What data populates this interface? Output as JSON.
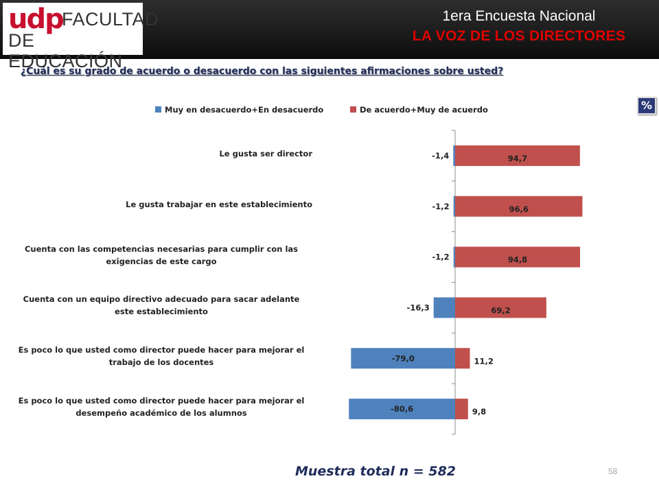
{
  "header": {
    "logo": {
      "brand": "udp",
      "line1": "FACULTAD",
      "line2": "DE EDUCACIÓN"
    },
    "title": "1era Encuesta Nacional",
    "subtitle": "LA VOZ DE LOS DIRECTORES"
  },
  "question": "¿Cuál es su grado de acuerdo o desacuerdo con las siguientes afirmaciones sobre usted?",
  "badge": "%",
  "footer": {
    "sample": "Muestra total n = 582",
    "page": "58"
  },
  "colors": {
    "disagree": "#4f81bd",
    "agree": "#c0504d",
    "header_bg": "#1c1c1c",
    "brand_red": "#c8102e"
  },
  "chart_data": {
    "type": "bar",
    "orientation": "horizontal",
    "stacked": "diverging",
    "legend_position": "top",
    "categories": [
      "Le gusta ser director",
      "Le gusta trabajar en este establecimiento",
      "Cuenta con las competencias necesarias para cumplir con las exigencias de este cargo",
      "Cuenta con un equipo directivo adecuado para sacar adelante este establecimiento",
      "Es poco lo que usted como director puede hacer para mejorar el trabajo de los docentes",
      "Es poco lo que usted como director puede hacer para mejorar el desempeño académico de los alumnos"
    ],
    "category_lines": [
      [
        "Le gusta ser director"
      ],
      [
        "Le gusta trabajar en este establecimiento"
      ],
      [
        "Cuenta con las competencias necesarias para cumplir con las",
        "exigencias de este cargo"
      ],
      [
        "Cuenta con un equipo directivo adecuado para sacar adelante",
        "este establecimiento"
      ],
      [
        "Es poco lo que usted como director puede hacer para mejorar el",
        "trabajo de los docentes"
      ],
      [
        "Es poco lo que usted como director puede hacer para mejorar el",
        "desempeño académico de los alumnos"
      ]
    ],
    "series": [
      {
        "name": "Muy en desacuerdo+En desacuerdo",
        "values": [
          -1.4,
          -1.2,
          -1.2,
          -16.3,
          -79.0,
          -80.6
        ],
        "labels": [
          "-1,4",
          "-1,2",
          "-1,2",
          "-16,3",
          "-79,0",
          "-80,6"
        ]
      },
      {
        "name": "De acuerdo+Muy de acuerdo",
        "values": [
          94.7,
          96.6,
          94.8,
          69.2,
          11.2,
          9.8
        ],
        "labels": [
          "94,7",
          "96,6",
          "94,8",
          "69,2",
          "11,2",
          "9,8"
        ]
      }
    ],
    "xlim": [
      -80.6,
      96.6
    ],
    "grid": false
  }
}
